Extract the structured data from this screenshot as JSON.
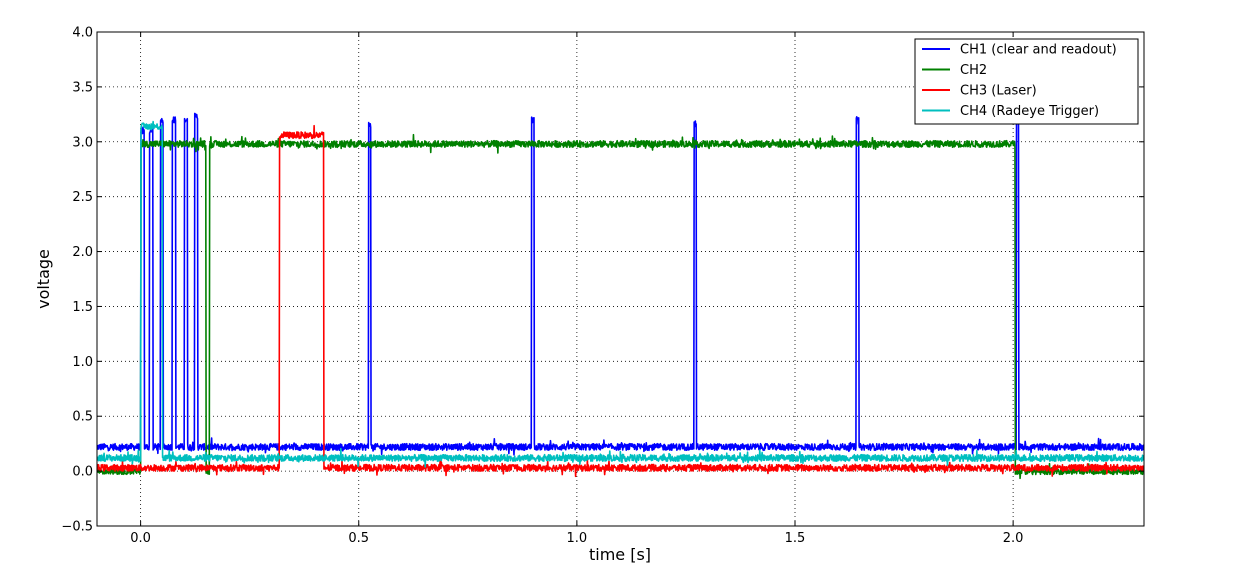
{
  "chart_data": {
    "type": "line",
    "title": "",
    "xlabel": "time [s]",
    "ylabel": "voltage",
    "xlim": [
      -0.1,
      2.3
    ],
    "ylim": [
      -0.5,
      4.0
    ],
    "xticks": [
      0.0,
      0.5,
      1.0,
      1.5,
      2.0
    ],
    "xtick_labels": [
      "0.0",
      "0.5",
      "1.0",
      "1.5",
      "2.0"
    ],
    "yticks": [
      -0.5,
      0.0,
      0.5,
      1.0,
      1.5,
      2.0,
      2.5,
      3.0,
      3.5,
      4.0
    ],
    "ytick_labels": [
      "−0.5",
      "0.0",
      "0.5",
      "1.0",
      "1.5",
      "2.0",
      "2.5",
      "3.0",
      "3.5",
      "4.0"
    ],
    "grid": true,
    "legend_position": "top-right",
    "series": [
      {
        "name": "CH1 (clear and readout)",
        "color": "#0000ff",
        "low": 0.22,
        "noise": 0.03,
        "pulses": [
          {
            "start": 0.0,
            "end": 0.008,
            "high": 3.1
          },
          {
            "start": 0.02,
            "end": 0.028,
            "high": 3.1
          },
          {
            "start": 0.045,
            "end": 0.052,
            "high": 3.2
          },
          {
            "start": 0.072,
            "end": 0.08,
            "high": 3.2
          },
          {
            "start": 0.1,
            "end": 0.107,
            "high": 3.2
          },
          {
            "start": 0.124,
            "end": 0.131,
            "high": 3.23
          },
          {
            "start": 0.522,
            "end": 0.528,
            "high": 3.16
          },
          {
            "start": 0.896,
            "end": 0.902,
            "high": 3.2
          },
          {
            "start": 1.268,
            "end": 1.274,
            "high": 3.16
          },
          {
            "start": 1.64,
            "end": 1.646,
            "high": 3.19
          },
          {
            "start": 2.007,
            "end": 2.013,
            "high": 3.2
          }
        ]
      },
      {
        "name": "CH2",
        "color": "#008000",
        "low": 0.0,
        "noise": 0.03,
        "pulses": [
          {
            "start": 0.0,
            "end": 0.15,
            "high": 2.98
          },
          {
            "start": 0.158,
            "end": 2.005,
            "high": 2.98
          }
        ]
      },
      {
        "name": "CH3 (Laser)",
        "color": "#ff0000",
        "low": 0.03,
        "noise": 0.03,
        "pulses": [
          {
            "start": 0.318,
            "end": 0.42,
            "high": 3.06
          }
        ]
      },
      {
        "name": "CH4 (Radeye Trigger)",
        "color": "#00bfbf",
        "low": 0.12,
        "noise": 0.03,
        "pulses": [
          {
            "start": 0.0,
            "end": 0.05,
            "high": 3.14
          }
        ]
      }
    ]
  }
}
